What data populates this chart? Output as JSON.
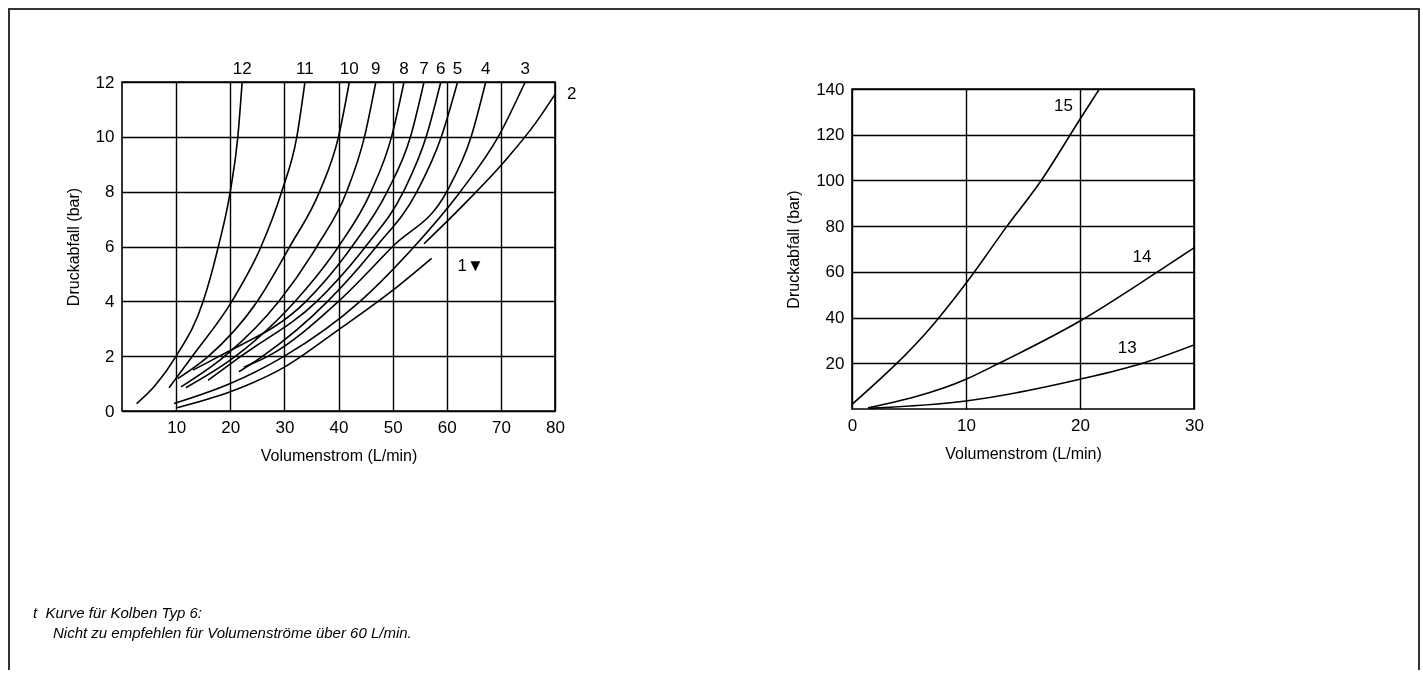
{
  "chart_data": [
    {
      "type": "line",
      "xlabel": "Volumenstrom (L/min)",
      "ylabel": "Druckabfall (bar)",
      "xlim": [
        0,
        80
      ],
      "ylim": [
        0,
        12
      ],
      "xticks": [
        10,
        20,
        30,
        40,
        50,
        60,
        70,
        80
      ],
      "yticks": [
        0,
        2,
        4,
        6,
        8,
        10,
        12
      ],
      "grid": true,
      "series": [
        {
          "name": "12",
          "color": "#000000",
          "x": [
            2.7,
            6,
            10,
            15,
            17.8,
            20,
            21.4,
            22.2
          ],
          "values": [
            0.27,
            0.9,
            2,
            4,
            6,
            8,
            10,
            12
          ]
        },
        {
          "name": "11",
          "color": "#000000",
          "x": [
            8.7,
            13,
            20.3,
            25.7,
            29.5,
            32.3,
            33.8
          ],
          "values": [
            0.85,
            2,
            4,
            6,
            8,
            10,
            12
          ]
        },
        {
          "name": "10",
          "color": "#000000",
          "x": [
            10.3,
            16,
            25,
            31,
            36.5,
            40,
            42
          ],
          "values": [
            1.18,
            2,
            4,
            6,
            8,
            10,
            12
          ]
        },
        {
          "name": "9",
          "color": "#000000",
          "x": [
            10.9,
            19,
            29,
            36,
            41.5,
            44.8,
            46.9
          ],
          "values": [
            0.88,
            2,
            4,
            6,
            8,
            10,
            12
          ]
        },
        {
          "name": "8",
          "color": "#000000",
          "x": [
            11.8,
            21,
            32,
            40,
            46,
            49.8,
            52.1
          ],
          "values": [
            0.85,
            2,
            4,
            6,
            8,
            10,
            12
          ]
        },
        {
          "name": "7",
          "color": "#000000",
          "x": [
            13.1,
            18,
            34,
            42.5,
            49,
            53.3,
            55.8
          ],
          "values": [
            1.49,
            2,
            4,
            6,
            8,
            10,
            12
          ]
        },
        {
          "name": "6",
          "color": "#000000",
          "x": [
            15.9,
            22,
            36,
            45,
            52,
            56.2,
            58.9
          ],
          "values": [
            1.12,
            2,
            4,
            6,
            8,
            10,
            12
          ]
        },
        {
          "name": "5",
          "color": "#000000",
          "x": [
            21.6,
            26,
            38,
            47,
            54.5,
            59,
            62
          ],
          "values": [
            1.43,
            2,
            4,
            6,
            8,
            10,
            12
          ]
        },
        {
          "name": "4",
          "color": "#000000",
          "x": [
            22.5,
            27,
            40,
            50,
            60,
            64.5,
            67.2
          ],
          "values": [
            1.6,
            2,
            4,
            6,
            8,
            10,
            12
          ]
        },
        {
          "name": "3",
          "color": "#000000",
          "x": [
            9.6,
            20,
            30,
            44,
            54,
            62.5,
            69.5,
            74.5
          ],
          "values": [
            0.27,
            1,
            2,
            4,
            6,
            8,
            10,
            12
          ]
        },
        {
          "name": "2",
          "color": "#000000",
          "x": [
            55.8,
            63,
            70.2,
            76.4,
            80
          ],
          "values": [
            6.1,
            7.5,
            9,
            10.5,
            11.55
          ]
        },
        {
          "name": "1▼",
          "color": "#000000",
          "x": [
            10.2,
            20,
            30,
            39.9,
            50,
            57.2
          ],
          "values": [
            0.12,
            0.7,
            1.6,
            2.95,
            4.4,
            5.57
          ]
        }
      ],
      "annotations": [
        "t  Kurve für Kolben Typ 6:",
        "Nicht zu empfehlen für Volumenströme über 60 L/min."
      ]
    },
    {
      "type": "line",
      "xlabel": "Volumenstrom (L/min)",
      "ylabel": "Druckabfall (bar)",
      "xlim": [
        0,
        30
      ],
      "ylim": [
        0,
        140
      ],
      "xticks": [
        0,
        10,
        20,
        30
      ],
      "yticks": [
        20,
        40,
        60,
        80,
        100,
        120,
        140
      ],
      "grid": true,
      "series": [
        {
          "name": "15",
          "color": "#000000",
          "x": [
            0,
            7.3,
            10,
            13.6,
            16.6,
            19.9,
            21.7
          ],
          "values": [
            2,
            38,
            55,
            80,
            100,
            126,
            140
          ]
        },
        {
          "name": "14",
          "color": "#000000",
          "x": [
            1.4,
            10,
            12.9,
            20,
            26.8,
            30
          ],
          "values": [
            0.5,
            13,
            20,
            38.5,
            60,
            70.5
          ]
        },
        {
          "name": "13",
          "color": "#000000",
          "x": [
            1.5,
            10,
            20,
            25.5,
            30
          ],
          "values": [
            0.3,
            3.5,
            13,
            20,
            28
          ]
        }
      ]
    }
  ]
}
